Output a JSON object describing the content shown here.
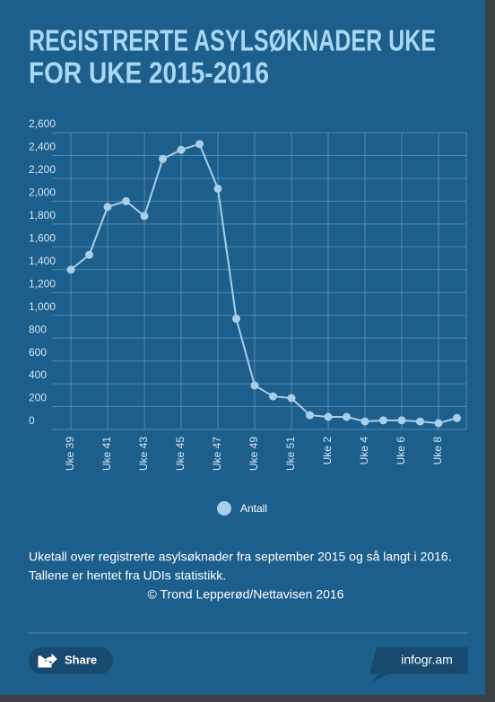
{
  "chart_data": {
    "type": "line",
    "title": [
      "REGISTRERTE ASYLSØKNADER UKE",
      "FOR UKE 2015-2016"
    ],
    "categories": [
      "Uke 39",
      null,
      "Uke 41",
      null,
      "Uke 43",
      null,
      "Uke 45",
      null,
      "Uke 47",
      null,
      "Uke 49",
      null,
      "Uke 51",
      null,
      "Uke 2",
      null,
      "Uke 4",
      null,
      "Uke 6",
      null,
      "Uke 8",
      null
    ],
    "series": [
      {
        "name": "Antall",
        "color": "#a9cfe8",
        "values": [
          1400,
          1530,
          1950,
          2000,
          1870,
          2370,
          2450,
          2500,
          2110,
          970,
          385,
          290,
          275,
          125,
          110,
          110,
          70,
          80,
          80,
          70,
          55,
          100
        ]
      }
    ],
    "ylim": [
      0,
      2600
    ],
    "yticks": [
      0,
      200,
      400,
      600,
      800,
      {
        "value": 1000,
        "label": "1,000"
      },
      {
        "value": 1200,
        "label": "1,200"
      },
      {
        "value": 1400,
        "label": "1,400"
      },
      {
        "value": 1600,
        "label": "1,600"
      },
      {
        "value": 1800,
        "label": "1,800"
      },
      {
        "value": 2000,
        "label": "2,000"
      },
      {
        "value": 2200,
        "label": "2,200"
      },
      {
        "value": 2400,
        "label": "2,400"
      },
      {
        "value": 2600,
        "label": "2,600"
      }
    ],
    "grid": true,
    "notes": [
      "Uketall over registrerte asylsøknader fra september 2015 og så langt i 2016.",
      "Tallene er hentet fra UDIs statistikk.",
      "© Trond Lepperød/Nettavisen 2016"
    ]
  },
  "share": "Share",
  "brand": "infogr.am"
}
